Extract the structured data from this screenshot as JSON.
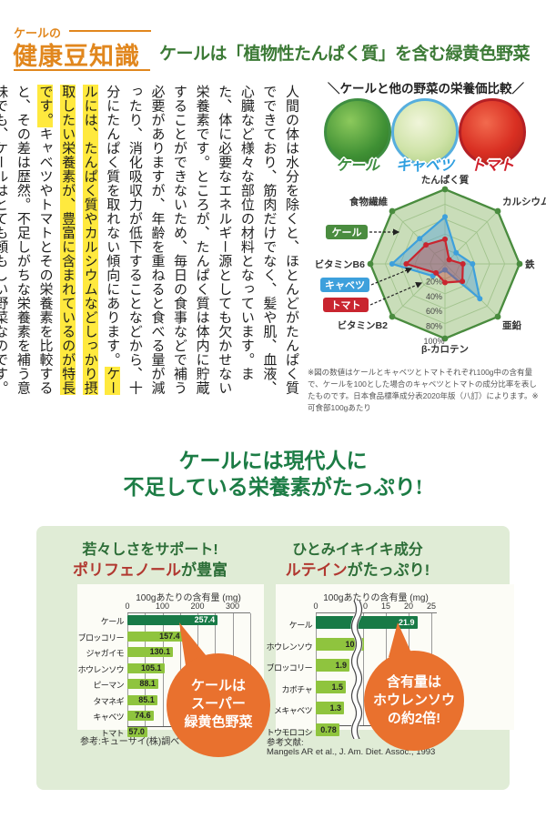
{
  "header": {
    "eyebrow": "ケールの",
    "badge": "健康豆知識",
    "title": "ケールは「植物性たんぱく質」を含む緑黄色野菜"
  },
  "article": {
    "segments": [
      {
        "text": "人間の体は水分を除くと、ほとんどがたんぱく質でできており、筋肉だけでなく、髪や肌、血液、心臓など様々な部位の材料となっています。また、体に必要なエネルギー源としても欠かせない栄養素です。ところが、たんぱく質は体内に貯蔵することができないため、毎日の食事などで補う必要がありますが、年齢を重ねると食べる量が減ったり、消化吸収力が低下することなどから、十分にたんぱく質を取れない傾向にあります。",
        "highlight": false
      },
      {
        "text": "ケールには、たんぱく質やカルシウムなどしっかり摂取したい栄養素が、豊富に含まれているのが特長です。",
        "highlight": true
      },
      {
        "text": "キャベツやトマトとその栄養素を比較すると、その差は歴然。不足しがちな栄養素を補う意味でも、ケールはとても頼もしい野菜なのです。",
        "highlight": false
      }
    ]
  },
  "comparison": {
    "heading": "＼ケールと他の野菜の栄養価比較／",
    "vegetables": [
      {
        "name": "ケール",
        "label_color": "#3e8e41"
      },
      {
        "name": "キャベツ",
        "label_color": "#2f9fe0"
      },
      {
        "name": "トマト",
        "label_color": "#d0212c"
      }
    ],
    "footnote": "※図の数値はケールとキャベツとトマトそれぞれ100g中の含有量で、ケールを100とした場合のキャベツとトマトの成分比率を表したものです。日本食品標準成分表2020年版（八訂）によります。※可食部100gあたり"
  },
  "mid_heading": {
    "line1": "ケールには現代人に",
    "line2": "不足している栄養素がたっぷり!"
  },
  "panel": {
    "left": {
      "heading1": "若々しさをサポート!",
      "heading2_em": "ポリフェノール",
      "heading2_rest": "が豊富",
      "bubble_lines": [
        "ケールは",
        "スーパー",
        "緑黄色野菜"
      ],
      "source": "参考:キューサイ(株)調べ"
    },
    "right": {
      "heading1": "ひとみイキイキ成分",
      "heading2_em": "ルテイン",
      "heading2_rest": "がたっぷり!",
      "bubble_lines": [
        "含有量は",
        "ホウレンソウ",
        "の約2倍!"
      ],
      "source_label": "参考文献:",
      "source": "Mangels AR et al., J. Am. Diet. Assoc., 1993"
    }
  },
  "chart_data": [
    {
      "type": "radar",
      "title": "ケールと他の野菜の栄養価比較",
      "categories": [
        "たんぱく質",
        "カルシウム",
        "鉄",
        "亜鉛",
        "β-カロテン",
        "ビタミンB2",
        "ビタミンB6",
        "食物繊維"
      ],
      "series": [
        {
          "name": "ケール",
          "color": "#4a8c3f",
          "values": [
            100,
            100,
            100,
            100,
            100,
            100,
            100,
            100
          ]
        },
        {
          "name": "キャベツ",
          "color": "#3da0dc",
          "values": [
            63,
            21,
            37,
            66,
            8,
            23,
            71,
            48
          ]
        },
        {
          "name": "トマト",
          "color": "#c9252f",
          "values": [
            33,
            8,
            24,
            33,
            25,
            17,
            52,
            36
          ]
        }
      ],
      "scale_ticks": [
        "20%",
        "40%",
        "60%",
        "80%",
        "100%"
      ],
      "max": 100,
      "note": "values are percent relative to kale = 100"
    },
    {
      "type": "bar",
      "title": "100gあたりの含有量 (mg)",
      "categories": [
        "ケール",
        "ブロッコリー",
        "ジャガイモ",
        "ホウレンソウ",
        "ピーマン",
        "タマネギ",
        "キャベツ",
        "トマト"
      ],
      "values": [
        257.4,
        157.4,
        130.1,
        105.1,
        88.1,
        85.1,
        74.6,
        57.0
      ],
      "value_labels": [
        "257.4",
        "157.4",
        "130.1",
        "105.1",
        "88.1",
        "85.1",
        "74.6",
        "57.0"
      ],
      "xticks": [
        0,
        100,
        200,
        300
      ],
      "xlim": [
        0,
        350
      ],
      "gridline_step": 50,
      "highlight_index": 0
    },
    {
      "type": "bar",
      "title": "100gあたりの含有量 (mg)",
      "categories": [
        "ケール",
        "ホウレンソウ",
        "ブロッコリー",
        "カボチャ",
        "メキャベツ",
        "トウモロコシ"
      ],
      "values": [
        21.9,
        10.2,
        1.9,
        1.5,
        1.3,
        0.78
      ],
      "value_labels": [
        "21.9",
        "10.2",
        "1.9",
        "1.5",
        "1.3",
        "0.78"
      ],
      "xticks": [
        0,
        10,
        15,
        20,
        25
      ],
      "axis_break_between": [
        0,
        10
      ],
      "highlight_index": 0
    }
  ],
  "colors": {
    "accent_orange": "#e1871e",
    "title_green": "#3c7a36",
    "mid_green": "#1c7c45",
    "panel_bg": "#e0ecd6",
    "bar_dark": "#187a47",
    "bar_light": "#8fc43e",
    "bubble_orange": "#e9712e",
    "highlight_yellow": "#ffe93e"
  }
}
